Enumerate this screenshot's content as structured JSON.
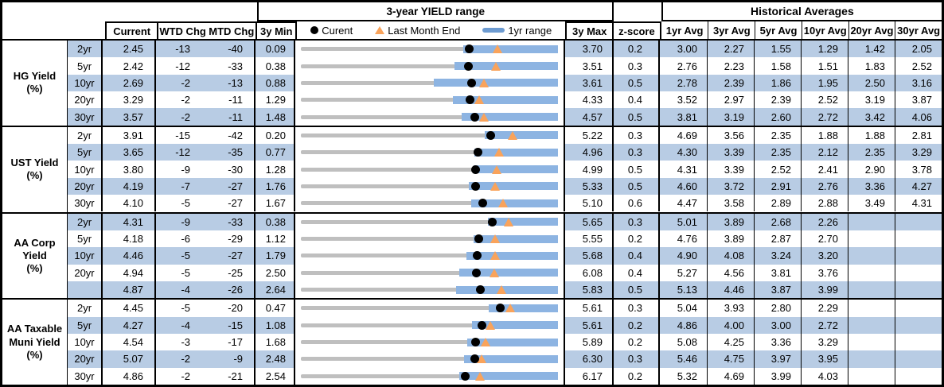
{
  "colors": {
    "stripe_blue": "#B8CCE4",
    "range_bar_blue": "#8DB4E2",
    "track_gray": "#BFBFBF",
    "marker_orange": "#F9A35B",
    "legend_bar_blue": "#6D9BD1",
    "border_black": "#000000"
  },
  "header": {
    "range_title": "3-year YIELD range",
    "historical_title": "Historical Averages",
    "current": "Current",
    "wtd": "WTD Chg",
    "mtd": "MTD Chg",
    "min3": "3y Min",
    "max3": "3y Max",
    "zscore": "z-score",
    "avg_cols": [
      "1yr Avg",
      "3yr Avg",
      "5yr Avg",
      "10yr Avg",
      "20yr Avg",
      "30yr Avg"
    ],
    "legend": {
      "current": "Curent",
      "last_month_end": "Last Month End",
      "yr1_range": "1yr range"
    }
  },
  "chart_data": {
    "type": "table",
    "description": "Bond yield dashboard. Each row shows a 3-year yield range strip chart: gray bar spans 3y Min to 3y Max, blue bar is the 1yr range (ending at 3y Max), black dot is current yield, orange triangle is last-month-end yield (current minus MTD change in bp). yr1_min_est values are estimated from marker positions.",
    "columns": [
      "Current",
      "WTD Chg",
      "MTD Chg",
      "3y Min",
      "3y Max",
      "z-score",
      "1yr Avg",
      "3yr Avg",
      "5yr Avg",
      "10yr Avg",
      "20yr Avg",
      "30yr Avg"
    ],
    "groups": [
      {
        "label": "HG Yield (%)",
        "rows": [
          {
            "tenor": "2yr",
            "current": "2.45",
            "wtd": "-13",
            "mtd": "-40",
            "min3": "0.09",
            "max3": "3.70",
            "z": "0.2",
            "avgs": [
              "3.00",
              "2.27",
              "1.55",
              "1.29",
              "1.42",
              "2.05"
            ],
            "yr1_min_est": 2.37
          },
          {
            "tenor": "5yr",
            "current": "2.42",
            "wtd": "-12",
            "mtd": "-33",
            "min3": "0.38",
            "max3": "3.51",
            "z": "0.3",
            "avgs": [
              "2.76",
              "2.23",
              "1.58",
              "1.51",
              "1.83",
              "2.52"
            ],
            "yr1_min_est": 2.25
          },
          {
            "tenor": "10yr",
            "current": "2.69",
            "wtd": "-2",
            "mtd": "-13",
            "min3": "0.88",
            "max3": "3.61",
            "z": "0.5",
            "avgs": [
              "2.78",
              "2.39",
              "1.86",
              "1.95",
              "2.50",
              "3.16"
            ],
            "yr1_min_est": 2.29
          },
          {
            "tenor": "20yr",
            "current": "3.29",
            "wtd": "-2",
            "mtd": "-11",
            "min3": "1.29",
            "max3": "4.33",
            "z": "0.4",
            "avgs": [
              "3.52",
              "2.97",
              "2.39",
              "2.52",
              "3.19",
              "3.87"
            ],
            "yr1_min_est": 3.09
          },
          {
            "tenor": "30yr",
            "current": "3.57",
            "wtd": "-2",
            "mtd": "-11",
            "min3": "1.48",
            "max3": "4.57",
            "z": "0.5",
            "avgs": [
              "3.81",
              "3.19",
              "2.60",
              "2.72",
              "3.42",
              "4.06"
            ],
            "yr1_min_est": 3.41
          }
        ]
      },
      {
        "label": "UST Yield (%)",
        "rows": [
          {
            "tenor": "2yr",
            "current": "3.91",
            "wtd": "-15",
            "mtd": "-42",
            "min3": "0.20",
            "max3": "5.22",
            "z": "0.3",
            "avgs": [
              "4.69",
              "3.56",
              "2.35",
              "1.88",
              "1.88",
              "2.81"
            ],
            "yr1_min_est": 3.79
          },
          {
            "tenor": "5yr",
            "current": "3.65",
            "wtd": "-12",
            "mtd": "-35",
            "min3": "0.77",
            "max3": "4.96",
            "z": "0.3",
            "avgs": [
              "4.30",
              "3.39",
              "2.35",
              "2.12",
              "2.35",
              "3.29"
            ],
            "yr1_min_est": 3.6
          },
          {
            "tenor": "10yr",
            "current": "3.80",
            "wtd": "-9",
            "mtd": "-30",
            "min3": "1.28",
            "max3": "4.99",
            "z": "0.5",
            "avgs": [
              "4.31",
              "3.39",
              "2.52",
              "2.41",
              "2.90",
              "3.78"
            ],
            "yr1_min_est": 3.77
          },
          {
            "tenor": "20yr",
            "current": "4.19",
            "wtd": "-7",
            "mtd": "-27",
            "min3": "1.76",
            "max3": "5.33",
            "z": "0.5",
            "avgs": [
              "4.60",
              "3.72",
              "2.91",
              "2.76",
              "3.36",
              "4.27"
            ],
            "yr1_min_est": 4.09
          },
          {
            "tenor": "30yr",
            "current": "4.10",
            "wtd": "-5",
            "mtd": "-27",
            "min3": "1.67",
            "max3": "5.10",
            "z": "0.6",
            "avgs": [
              "4.47",
              "3.58",
              "2.89",
              "2.88",
              "3.49",
              "4.31"
            ],
            "yr1_min_est": 3.94
          }
        ]
      },
      {
        "label": "AA Corp Yield\n(%)",
        "rows": [
          {
            "tenor": "2yr",
            "current": "4.31",
            "wtd": "-9",
            "mtd": "-33",
            "min3": "0.38",
            "max3": "5.65",
            "z": "0.3",
            "avgs": [
              "5.01",
              "3.89",
              "2.68",
              "2.26",
              "",
              ""
            ],
            "yr1_min_est": 4.21
          },
          {
            "tenor": "5yr",
            "current": "4.18",
            "wtd": "-6",
            "mtd": "-29",
            "min3": "1.12",
            "max3": "5.55",
            "z": "0.2",
            "avgs": [
              "4.76",
              "3.89",
              "2.87",
              "2.70",
              "",
              ""
            ],
            "yr1_min_est": 4.09
          },
          {
            "tenor": "10yr",
            "current": "4.46",
            "wtd": "-5",
            "mtd": "-27",
            "min3": "1.79",
            "max3": "5.68",
            "z": "0.4",
            "avgs": [
              "4.90",
              "4.08",
              "3.24",
              "3.20",
              "",
              ""
            ],
            "yr1_min_est": 4.3
          },
          {
            "tenor": "20yr",
            "current": "4.94",
            "wtd": "-5",
            "mtd": "-25",
            "min3": "2.50",
            "max3": "6.08",
            "z": "0.4",
            "avgs": [
              "5.27",
              "4.56",
              "3.81",
              "3.76",
              "",
              ""
            ],
            "yr1_min_est": 4.71
          },
          {
            "tenor": "",
            "current": "4.87",
            "wtd": "-4",
            "mtd": "-26",
            "min3": "2.64",
            "max3": "5.83",
            "z": "0.5",
            "avgs": [
              "5.13",
              "4.46",
              "3.87",
              "3.99",
              "",
              ""
            ],
            "yr1_min_est": 4.57
          }
        ]
      },
      {
        "label": "AA Taxable\nMuni Yield\n(%)",
        "rows": [
          {
            "tenor": "2yr",
            "current": "4.45",
            "wtd": "-5",
            "mtd": "-20",
            "min3": "0.47",
            "max3": "5.61",
            "z": "0.3",
            "avgs": [
              "5.04",
              "3.93",
              "2.80",
              "2.29",
              "",
              ""
            ],
            "yr1_min_est": 4.22
          },
          {
            "tenor": "5yr",
            "current": "4.27",
            "wtd": "-4",
            "mtd": "-15",
            "min3": "1.08",
            "max3": "5.61",
            "z": "0.2",
            "avgs": [
              "4.86",
              "4.00",
              "3.00",
              "2.72",
              "",
              ""
            ],
            "yr1_min_est": 4.1
          },
          {
            "tenor": "10yr",
            "current": "4.54",
            "wtd": "-3",
            "mtd": "-17",
            "min3": "1.68",
            "max3": "5.89",
            "z": "0.2",
            "avgs": [
              "5.08",
              "4.25",
              "3.36",
              "3.29",
              "",
              ""
            ],
            "yr1_min_est": 4.4
          },
          {
            "tenor": "20yr",
            "current": "5.07",
            "wtd": "-2",
            "mtd": "-9",
            "min3": "2.48",
            "max3": "6.30",
            "z": "0.3",
            "avgs": [
              "5.46",
              "4.75",
              "3.97",
              "3.95",
              "",
              ""
            ],
            "yr1_min_est": 4.9
          },
          {
            "tenor": "30yr",
            "current": "4.86",
            "wtd": "-2",
            "mtd": "-21",
            "min3": "2.54",
            "max3": "6.17",
            "z": "0.2",
            "avgs": [
              "5.32",
              "4.69",
              "3.99",
              "4.03",
              "",
              ""
            ],
            "yr1_min_est": 4.78
          }
        ]
      }
    ]
  }
}
